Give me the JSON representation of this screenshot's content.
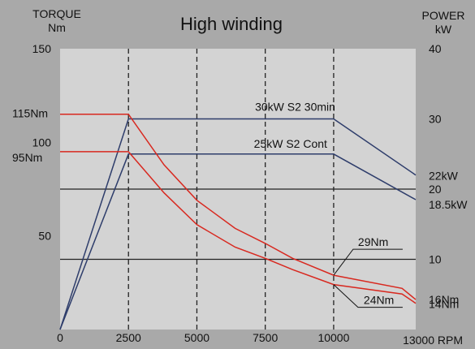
{
  "chart_data": {
    "type": "line",
    "title": "High winding",
    "left_axis": {
      "label_line1": "TORQUE",
      "label_line2": "Nm",
      "ticks": [
        150,
        100,
        50
      ],
      "extra_labels": [
        "115Nm",
        "95Nm"
      ],
      "ylim": [
        0,
        150
      ]
    },
    "right_axis": {
      "label_line1": "POWER",
      "label_line2": "kW",
      "ticks": [
        "40",
        "30",
        "20",
        "10"
      ],
      "extra_labels": [
        "22kW",
        "18.5kW",
        "16Nm",
        "14Nm"
      ],
      "ylim": [
        0,
        40
      ]
    },
    "x_axis": {
      "ticks": [
        "0",
        "2500",
        "5000",
        "7500",
        "10000"
      ],
      "end_label": "13000 RPM",
      "xlim": [
        0,
        13000
      ]
    },
    "dashed_verticals_at": [
      2500,
      5000,
      7500,
      10000
    ],
    "grid_horizontal_power_kw": [
      20,
      10
    ],
    "series": [
      {
        "name": "30kW S2 30min",
        "quantity": "power_kw",
        "color": "#2e3d6b",
        "points": [
          [
            0,
            0
          ],
          [
            2500,
            30
          ],
          [
            10000,
            30
          ],
          [
            13000,
            22
          ]
        ]
      },
      {
        "name": "25kW S2 Cont",
        "quantity": "power_kw",
        "color": "#2e3d6b",
        "points": [
          [
            0,
            0
          ],
          [
            2500,
            25
          ],
          [
            10000,
            25
          ],
          [
            13000,
            18.5
          ]
        ]
      },
      {
        "quantity": "torque_nm",
        "color": "#d8281f",
        "points": [
          [
            0,
            115
          ],
          [
            2500,
            115
          ],
          [
            3800,
            88
          ],
          [
            5000,
            69
          ],
          [
            6400,
            54
          ],
          [
            7500,
            46
          ],
          [
            8500,
            38
          ],
          [
            10000,
            29
          ],
          [
            12500,
            22
          ],
          [
            13000,
            16
          ]
        ]
      },
      {
        "quantity": "torque_nm",
        "color": "#d8281f",
        "points": [
          [
            0,
            95
          ],
          [
            2500,
            95
          ],
          [
            3800,
            73
          ],
          [
            5000,
            56
          ],
          [
            6400,
            44
          ],
          [
            7500,
            38
          ],
          [
            8500,
            32
          ],
          [
            10000,
            24
          ],
          [
            12500,
            19
          ],
          [
            13000,
            14
          ]
        ]
      }
    ],
    "annotations": [
      {
        "text": "29Nm",
        "leader_from": [
          10000,
          29
        ]
      },
      {
        "text": "24Nm",
        "leader_from": [
          10000,
          24
        ]
      }
    ]
  }
}
